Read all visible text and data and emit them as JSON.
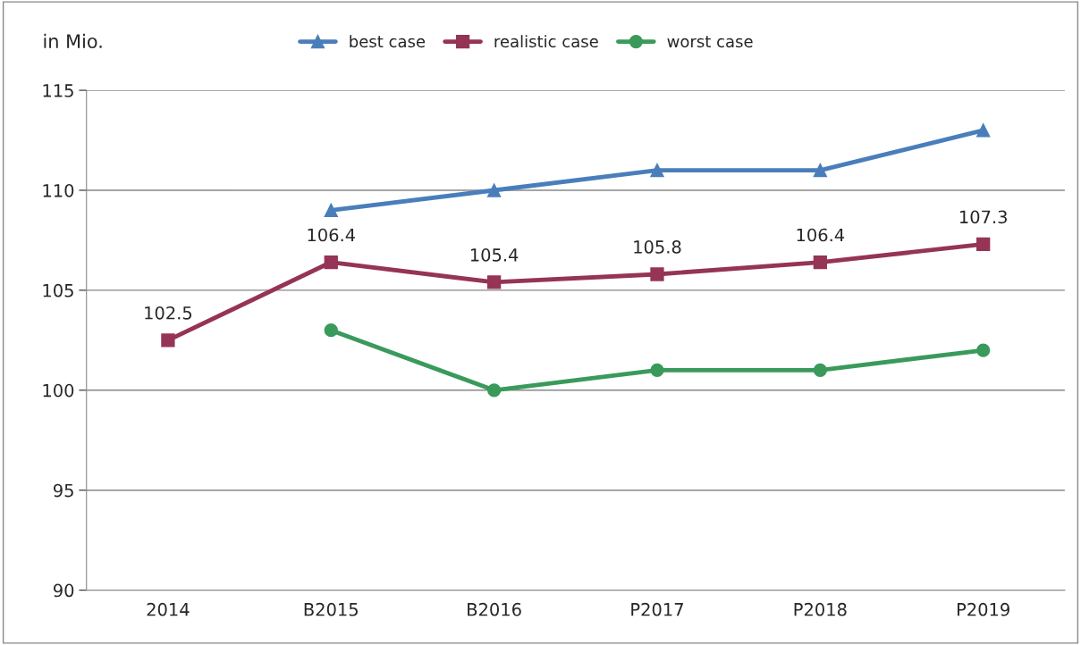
{
  "chart_data": {
    "type": "line",
    "ylabel": "in Mio.",
    "categories": [
      "2014",
      "B2015",
      "B2016",
      "P2017",
      "P2018",
      "P2019"
    ],
    "series": [
      {
        "name": "best case",
        "color": "#4a7ebb",
        "marker": "triangle",
        "values": [
          null,
          109,
          110,
          111,
          111,
          113
        ]
      },
      {
        "name": "realistic case",
        "color": "#953456",
        "marker": "square",
        "values": [
          102.5,
          106.4,
          105.4,
          105.8,
          106.4,
          107.3
        ],
        "value_labels": [
          "102.5",
          "106.4",
          "105.4",
          "105.8",
          "106.4",
          "107.3"
        ]
      },
      {
        "name": "worst case",
        "color": "#3a9a5b",
        "marker": "circle",
        "values": [
          null,
          103,
          100,
          101,
          101,
          102
        ]
      }
    ],
    "ylim": [
      90,
      115
    ],
    "yticks": [
      90,
      95,
      100,
      105,
      110,
      115
    ],
    "grid": "y",
    "legend": "top",
    "line_style": "solid"
  }
}
